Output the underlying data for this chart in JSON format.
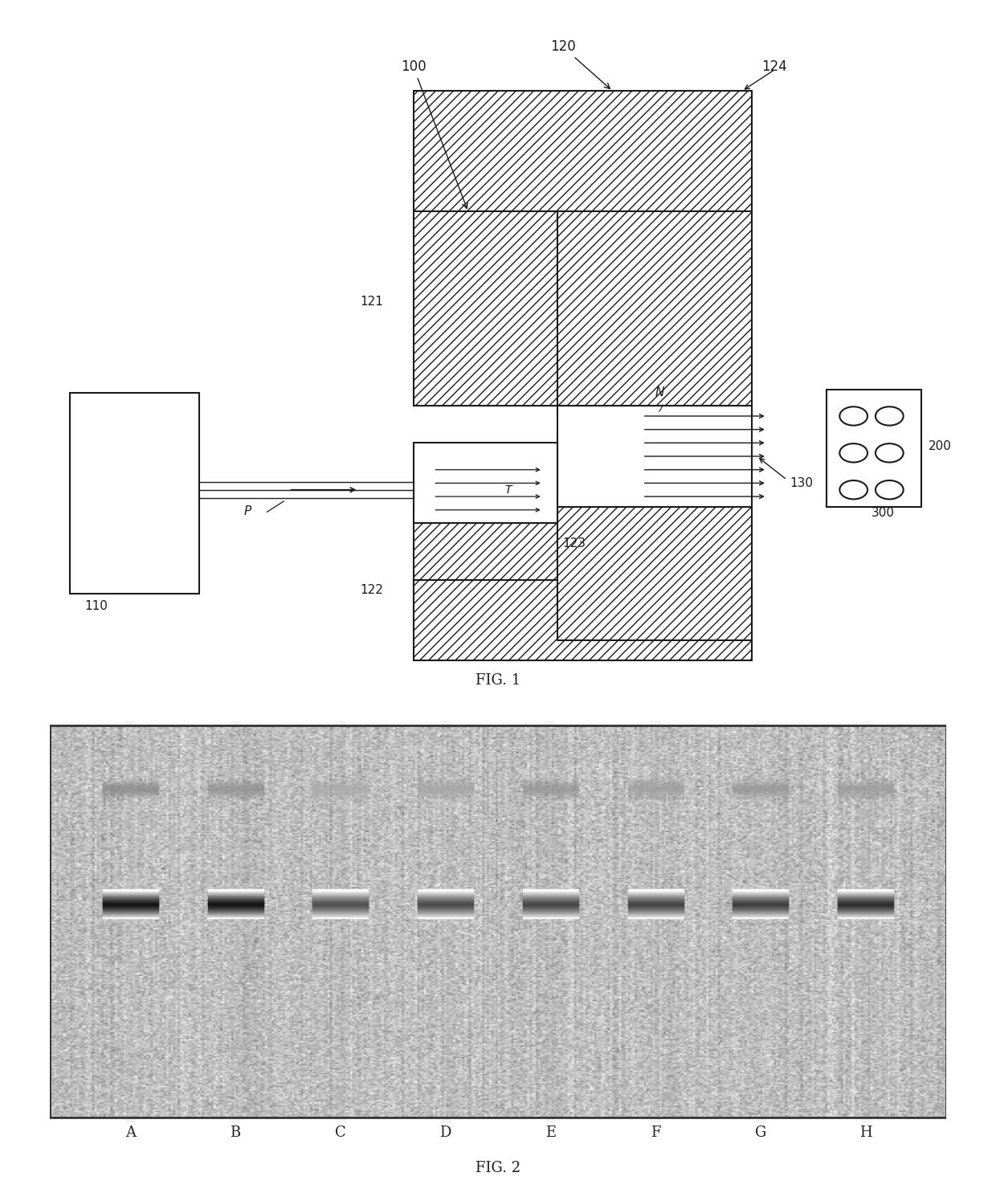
{
  "fig1_label": "FIG. 1",
  "fig2_label": "FIG. 2",
  "lane_labels": [
    "A",
    "B",
    "C",
    "D",
    "E",
    "F",
    "G",
    "H"
  ],
  "bg_color": "#ffffff",
  "diagram_line_color": "#1a1a1a",
  "main_band_darkness": [
    0.08,
    0.07,
    0.32,
    0.3,
    0.28,
    0.27,
    0.25,
    0.18
  ],
  "upper_band_darkness": [
    0.55,
    0.58,
    0.68,
    0.65,
    0.6,
    0.63,
    0.6,
    0.62
  ]
}
